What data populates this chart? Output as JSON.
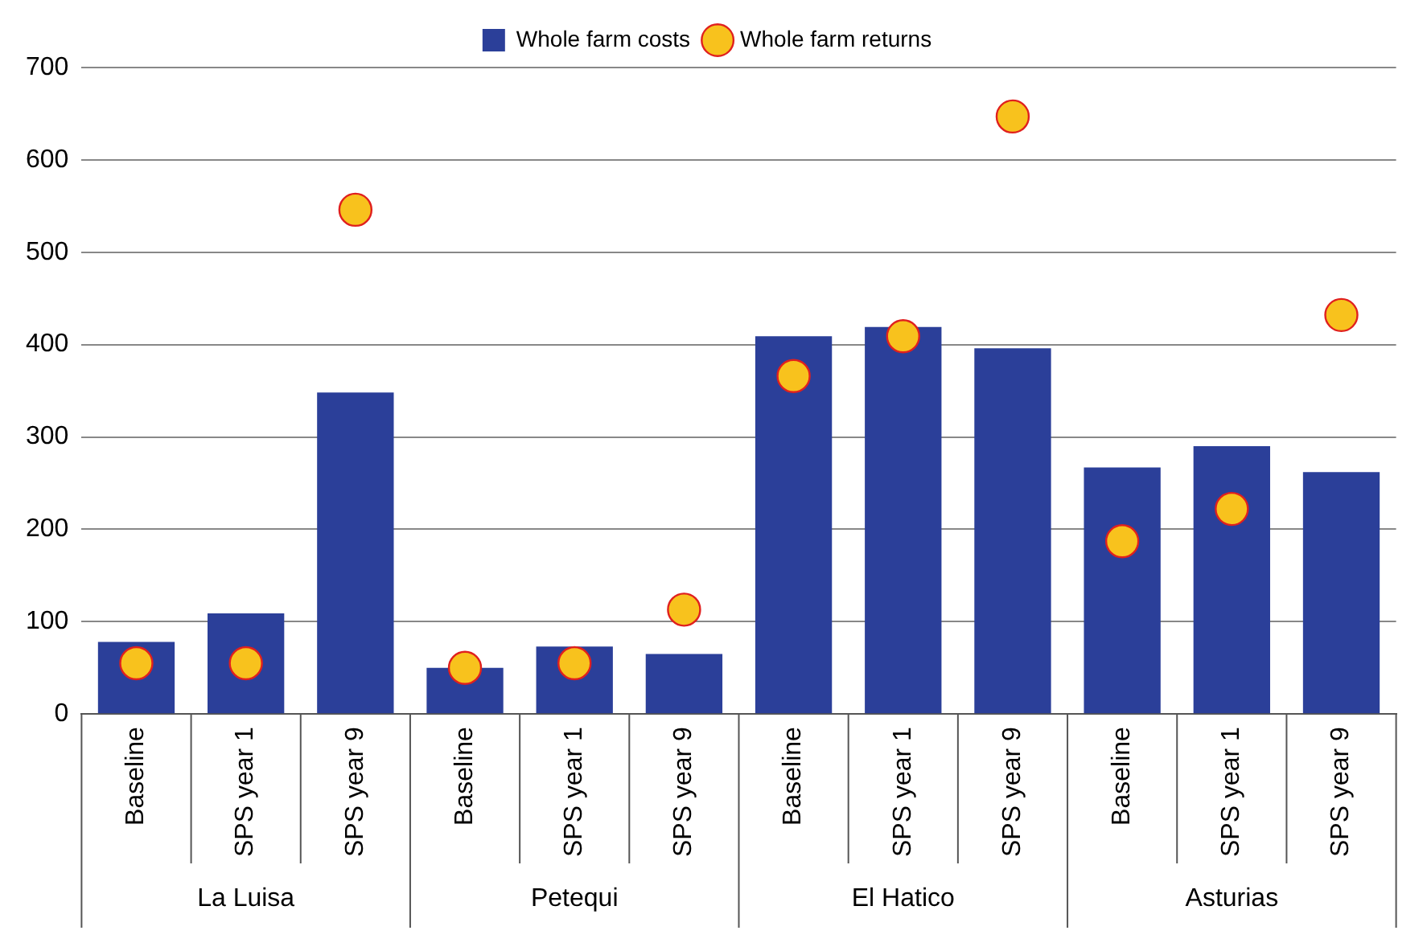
{
  "chart_data": {
    "type": "bar",
    "categories": [
      "Baseline",
      "SPS year 1",
      "SPS year 9",
      "Baseline",
      "SPS year 1",
      "SPS year 9",
      "Baseline",
      "SPS year 1",
      "SPS year 9",
      "Baseline",
      "SPS year 1",
      "SPS year 9"
    ],
    "series": [
      {
        "name": "Whole farm costs",
        "color": "#2b3f99",
        "values": [
          78,
          109,
          348,
          50,
          73,
          65,
          409,
          419,
          396,
          267,
          290,
          262
        ]
      },
      {
        "name": "Whole farm returns",
        "type": "scatter",
        "color": "#f8c21d",
        "values": [
          55,
          55,
          546,
          50,
          55,
          113,
          366,
          409,
          647,
          187,
          222,
          432
        ]
      }
    ],
    "annotations": [
      "La Luisa",
      "Petequi",
      "El Hatico",
      "Asturias"
    ],
    "ylim": [
      0,
      700
    ],
    "yticks": [
      0,
      100,
      200,
      300,
      400,
      500,
      600,
      700
    ],
    "grid": "y",
    "legend": "top",
    "marker": "circle"
  }
}
